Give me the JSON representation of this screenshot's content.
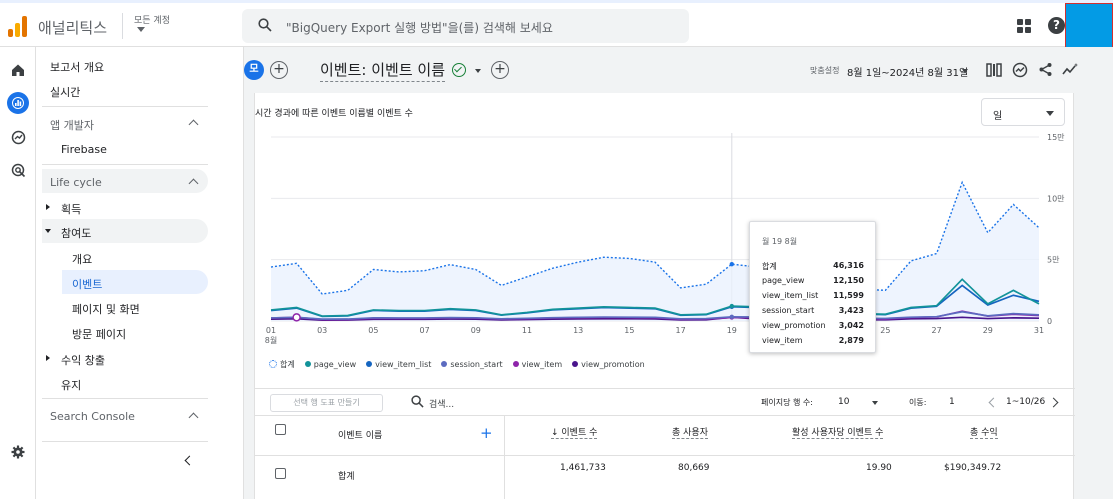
{
  "topbar": {
    "brand": "애널리틱스",
    "account": "모든 계정",
    "search_placeholder": "\"BigQuery Export 실행 방법\"을(를) 검색해 보세요",
    "help": "?"
  },
  "sidebar": {
    "overview": "보고서 개요",
    "realtime": "실시간",
    "group_app_dev": "앱 개발자",
    "firebase": "Firebase",
    "group_lifecycle": "Life cycle",
    "acquisition": "획득",
    "engagement": "참여도",
    "sub_overview": "개요",
    "sub_events": "이벤트",
    "sub_pages": "페이지 및 화면",
    "sub_landing": "방문 페이지",
    "monetization": "수익 창출",
    "retention": "유지",
    "group_search_console": "Search Console"
  },
  "header": {
    "segment_chip": "모",
    "title": "이벤트: 이벤트 이름",
    "custom_label": "맞춤설정",
    "date_range": "8월 1일~2024년 8월 31일"
  },
  "chart": {
    "title": "시간 경과에 따른 이벤트 이름별 이벤트 수",
    "granularity": "일"
  },
  "chart_data": {
    "type": "line",
    "title": "시간 경과에 따른 이벤트 이름별 이벤트 수",
    "x": [
      1,
      2,
      3,
      4,
      5,
      6,
      7,
      8,
      9,
      10,
      11,
      12,
      13,
      14,
      15,
      16,
      17,
      18,
      19,
      20,
      21,
      22,
      23,
      24,
      25,
      26,
      27,
      28,
      29,
      30,
      31
    ],
    "x_tick_labels": [
      "01",
      "03",
      "05",
      "07",
      "09",
      "11",
      "13",
      "15",
      "17",
      "19",
      "21",
      "23",
      "25",
      "27",
      "29",
      "31"
    ],
    "x_month_label": "8월",
    "y_tick_labels": [
      "0",
      "5만",
      "10만",
      "15만"
    ],
    "ylim": [
      0,
      150000
    ],
    "series": [
      {
        "name": "합계",
        "color": "#1a73e8",
        "values": [
          44000,
          47000,
          22000,
          25000,
          42000,
          40000,
          41000,
          46000,
          42000,
          29000,
          36000,
          43000,
          48000,
          52000,
          51000,
          48000,
          27000,
          30000,
          46316,
          44000,
          34000,
          30000,
          28000,
          26000,
          25000,
          49000,
          55000,
          113000,
          72000,
          95000,
          76000
        ]
      },
      {
        "name": "page_view",
        "color": "#12939a",
        "values": [
          9000,
          11000,
          4000,
          4500,
          9000,
          8500,
          8500,
          10000,
          9000,
          5000,
          7000,
          9500,
          10500,
          11500,
          11000,
          10500,
          5000,
          5500,
          12150,
          11500,
          8000,
          7000,
          6500,
          6000,
          5500,
          11000,
          12500,
          34000,
          14000,
          25000,
          14000
        ]
      },
      {
        "name": "view_item_list",
        "color": "#1565c0",
        "values": [
          8500,
          10500,
          3800,
          4200,
          8600,
          8000,
          8000,
          9500,
          8500,
          4800,
          6600,
          9000,
          10000,
          11000,
          10500,
          10000,
          4700,
          5200,
          11599,
          11000,
          7600,
          6700,
          6200,
          5700,
          5200,
          10500,
          12000,
          29000,
          13000,
          21000,
          16000
        ]
      },
      {
        "name": "session_start",
        "color": "#5c6bc0",
        "values": [
          2500,
          3000,
          1500,
          1600,
          2600,
          2500,
          2500,
          2800,
          2600,
          1800,
          2200,
          2700,
          3000,
          3200,
          3100,
          3000,
          1800,
          2000,
          3423,
          3300,
          2600,
          2400,
          2300,
          2200,
          2100,
          3100,
          3500,
          7500,
          4200,
          6000,
          5000
        ]
      },
      {
        "name": "view_item",
        "color": "#8e24aa",
        "values": [
          2500,
          3000,
          1200,
          1300,
          2300,
          2200,
          2200,
          2600,
          2400,
          1500,
          1900,
          2500,
          2800,
          3000,
          2900,
          2700,
          1400,
          1600,
          2879,
          2800,
          2100,
          1900,
          1800,
          1700,
          1600,
          2900,
          3300,
          8000,
          4000,
          5500,
          4500
        ]
      },
      {
        "name": "view_promotion",
        "color": "#4a148c",
        "values": [
          1500,
          1800,
          700,
          800,
          1400,
          1400,
          1400,
          1600,
          1500,
          900,
          1200,
          1500,
          1700,
          1800,
          1800,
          1700,
          900,
          1000,
          3042,
          1700,
          1300,
          1200,
          1100,
          1000,
          1000,
          1800,
          2000,
          3000,
          2000,
          2600,
          2300
        ]
      }
    ],
    "tooltip": {
      "date": "월 19 8월",
      "rows": [
        {
          "label": "합계",
          "value": "46,316"
        },
        {
          "label": "page_view",
          "value": "12,150"
        },
        {
          "label": "view_item_list",
          "value": "11,599"
        },
        {
          "label": "session_start",
          "value": "3,423"
        },
        {
          "label": "view_promotion",
          "value": "3,042"
        },
        {
          "label": "view_item",
          "value": "2,879"
        }
      ]
    },
    "legend": [
      "합계",
      "page_view",
      "view_item_list",
      "session_start",
      "view_item",
      "view_promotion"
    ]
  },
  "table": {
    "make_chart_button": "선택 행 도표 만들기",
    "search_placeholder": "검색...",
    "rows_per_page_label": "페이지당 행 수:",
    "rows_per_page": "10",
    "goto_label": "이동:",
    "goto_value": "1",
    "pagination": "1~10/26",
    "columns": [
      "이벤트 이름",
      "↓ 이벤트 수",
      "총 사용자",
      "활성 사용자당 이벤트 수",
      "총 수익"
    ],
    "add_column": "+",
    "total_row": {
      "name": "합계",
      "events": "1,461,733",
      "users": "80,669",
      "per_user": "19.90",
      "revenue": "$190,349.72"
    }
  }
}
